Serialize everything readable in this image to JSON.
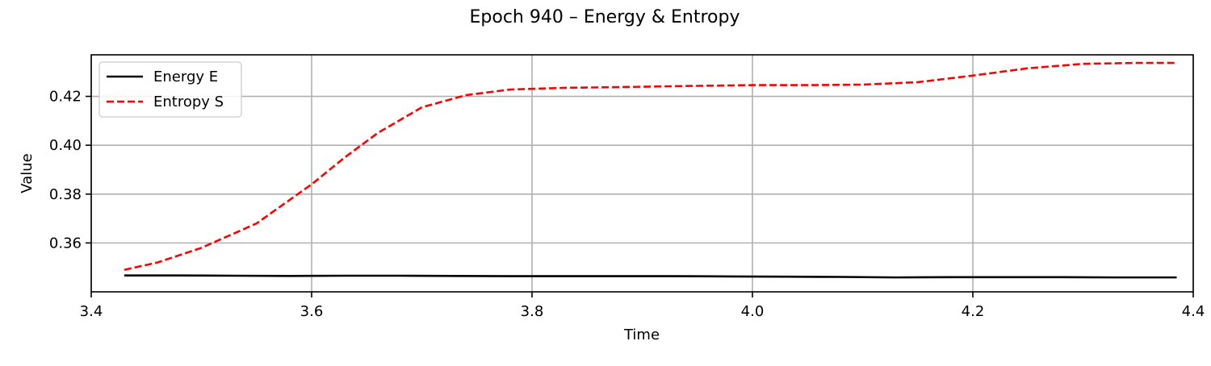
{
  "chart_data": {
    "type": "line",
    "title": "Epoch 940 – Energy & Entropy",
    "xlabel": "Time",
    "ylabel": "Value",
    "xlim": [
      3.4,
      4.4
    ],
    "ylim": [
      0.34,
      0.437
    ],
    "x_ticks": [
      3.4,
      3.6,
      3.8,
      4.0,
      4.2,
      4.4
    ],
    "x_tick_labels": [
      "3.4",
      "3.6",
      "3.8",
      "4.0",
      "4.2",
      "4.4"
    ],
    "y_ticks": [
      0.36,
      0.38,
      0.4,
      0.42
    ],
    "y_tick_labels": [
      "0.36",
      "0.38",
      "0.40",
      "0.42"
    ],
    "grid": true,
    "legend_placement": "upper-left",
    "series": [
      {
        "name": "Energy E",
        "color": "#000000",
        "linestyle": "solid",
        "x": [
          3.43,
          3.48,
          3.53,
          3.58,
          3.63,
          3.68,
          3.73,
          3.78,
          3.83,
          3.88,
          3.93,
          3.98,
          4.03,
          4.08,
          4.13,
          4.18,
          4.23,
          4.28,
          4.33,
          4.385
        ],
        "values": [
          0.3467,
          0.3467,
          0.3466,
          0.3465,
          0.3466,
          0.3466,
          0.3465,
          0.3464,
          0.3464,
          0.3464,
          0.3464,
          0.3463,
          0.3462,
          0.3461,
          0.3459,
          0.346,
          0.346,
          0.346,
          0.3459,
          0.3459
        ]
      },
      {
        "name": "Entropy S",
        "color": "#ff0000",
        "linestyle": "dashed",
        "x": [
          3.43,
          3.46,
          3.5,
          3.55,
          3.6,
          3.63,
          3.66,
          3.7,
          3.74,
          3.78,
          3.83,
          3.88,
          3.95,
          4.0,
          4.05,
          4.1,
          4.15,
          4.2,
          4.25,
          4.3,
          4.35,
          4.385
        ],
        "values": [
          0.349,
          0.352,
          0.358,
          0.368,
          0.384,
          0.395,
          0.405,
          0.4155,
          0.4205,
          0.4228,
          0.4235,
          0.4238,
          0.4243,
          0.4246,
          0.4246,
          0.4248,
          0.4258,
          0.4285,
          0.4315,
          0.4333,
          0.4337,
          0.4337
        ]
      }
    ]
  }
}
